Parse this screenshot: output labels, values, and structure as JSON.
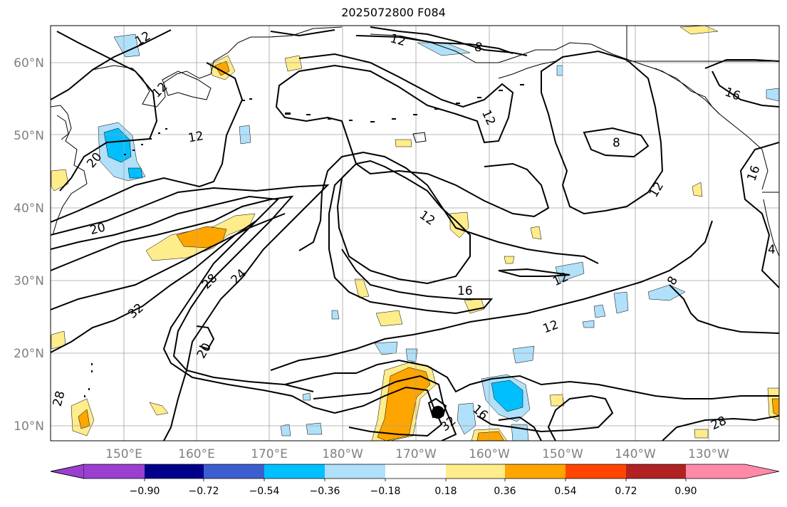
{
  "title": "2025072800 F084",
  "latitude_labels": [
    "60°N",
    "50°N",
    "40°N",
    "30°N",
    "20°N",
    "10°N"
  ],
  "longitude_labels": [
    "150°E",
    "160°E",
    "170°E",
    "180°W",
    "170°W",
    "160°W",
    "150°W",
    "140°W",
    "130°W"
  ],
  "contour_labels": [
    "12",
    "12",
    "8",
    "12",
    "12",
    "20",
    "16",
    "8",
    "12",
    "20",
    "12",
    "16",
    "28",
    "24",
    "12",
    "32",
    "12",
    "20",
    "12",
    "28",
    "32",
    "16",
    "4",
    "8",
    "28",
    "16"
  ],
  "colorbar": {
    "ticks": [
      "−0.90",
      "−0.72",
      "−0.54",
      "−0.36",
      "−0.18",
      "0.18",
      "0.36",
      "0.54",
      "0.72",
      "0.90"
    ],
    "colors": [
      "#9a3fcf",
      "#00008b",
      "#3c5fcf",
      "#00bfff",
      "#b0e0fa",
      "#ffffff",
      "#ffec8b",
      "#ffa500",
      "#ff4500",
      "#b22222",
      "#ff8aa8"
    ]
  },
  "shading_colors": {
    "yellow": "#ffec8b",
    "orange": "#ffa500",
    "lightblue": "#b0e0fa",
    "blue": "#00bfff"
  },
  "storm_marker": "storm-center-dot"
}
